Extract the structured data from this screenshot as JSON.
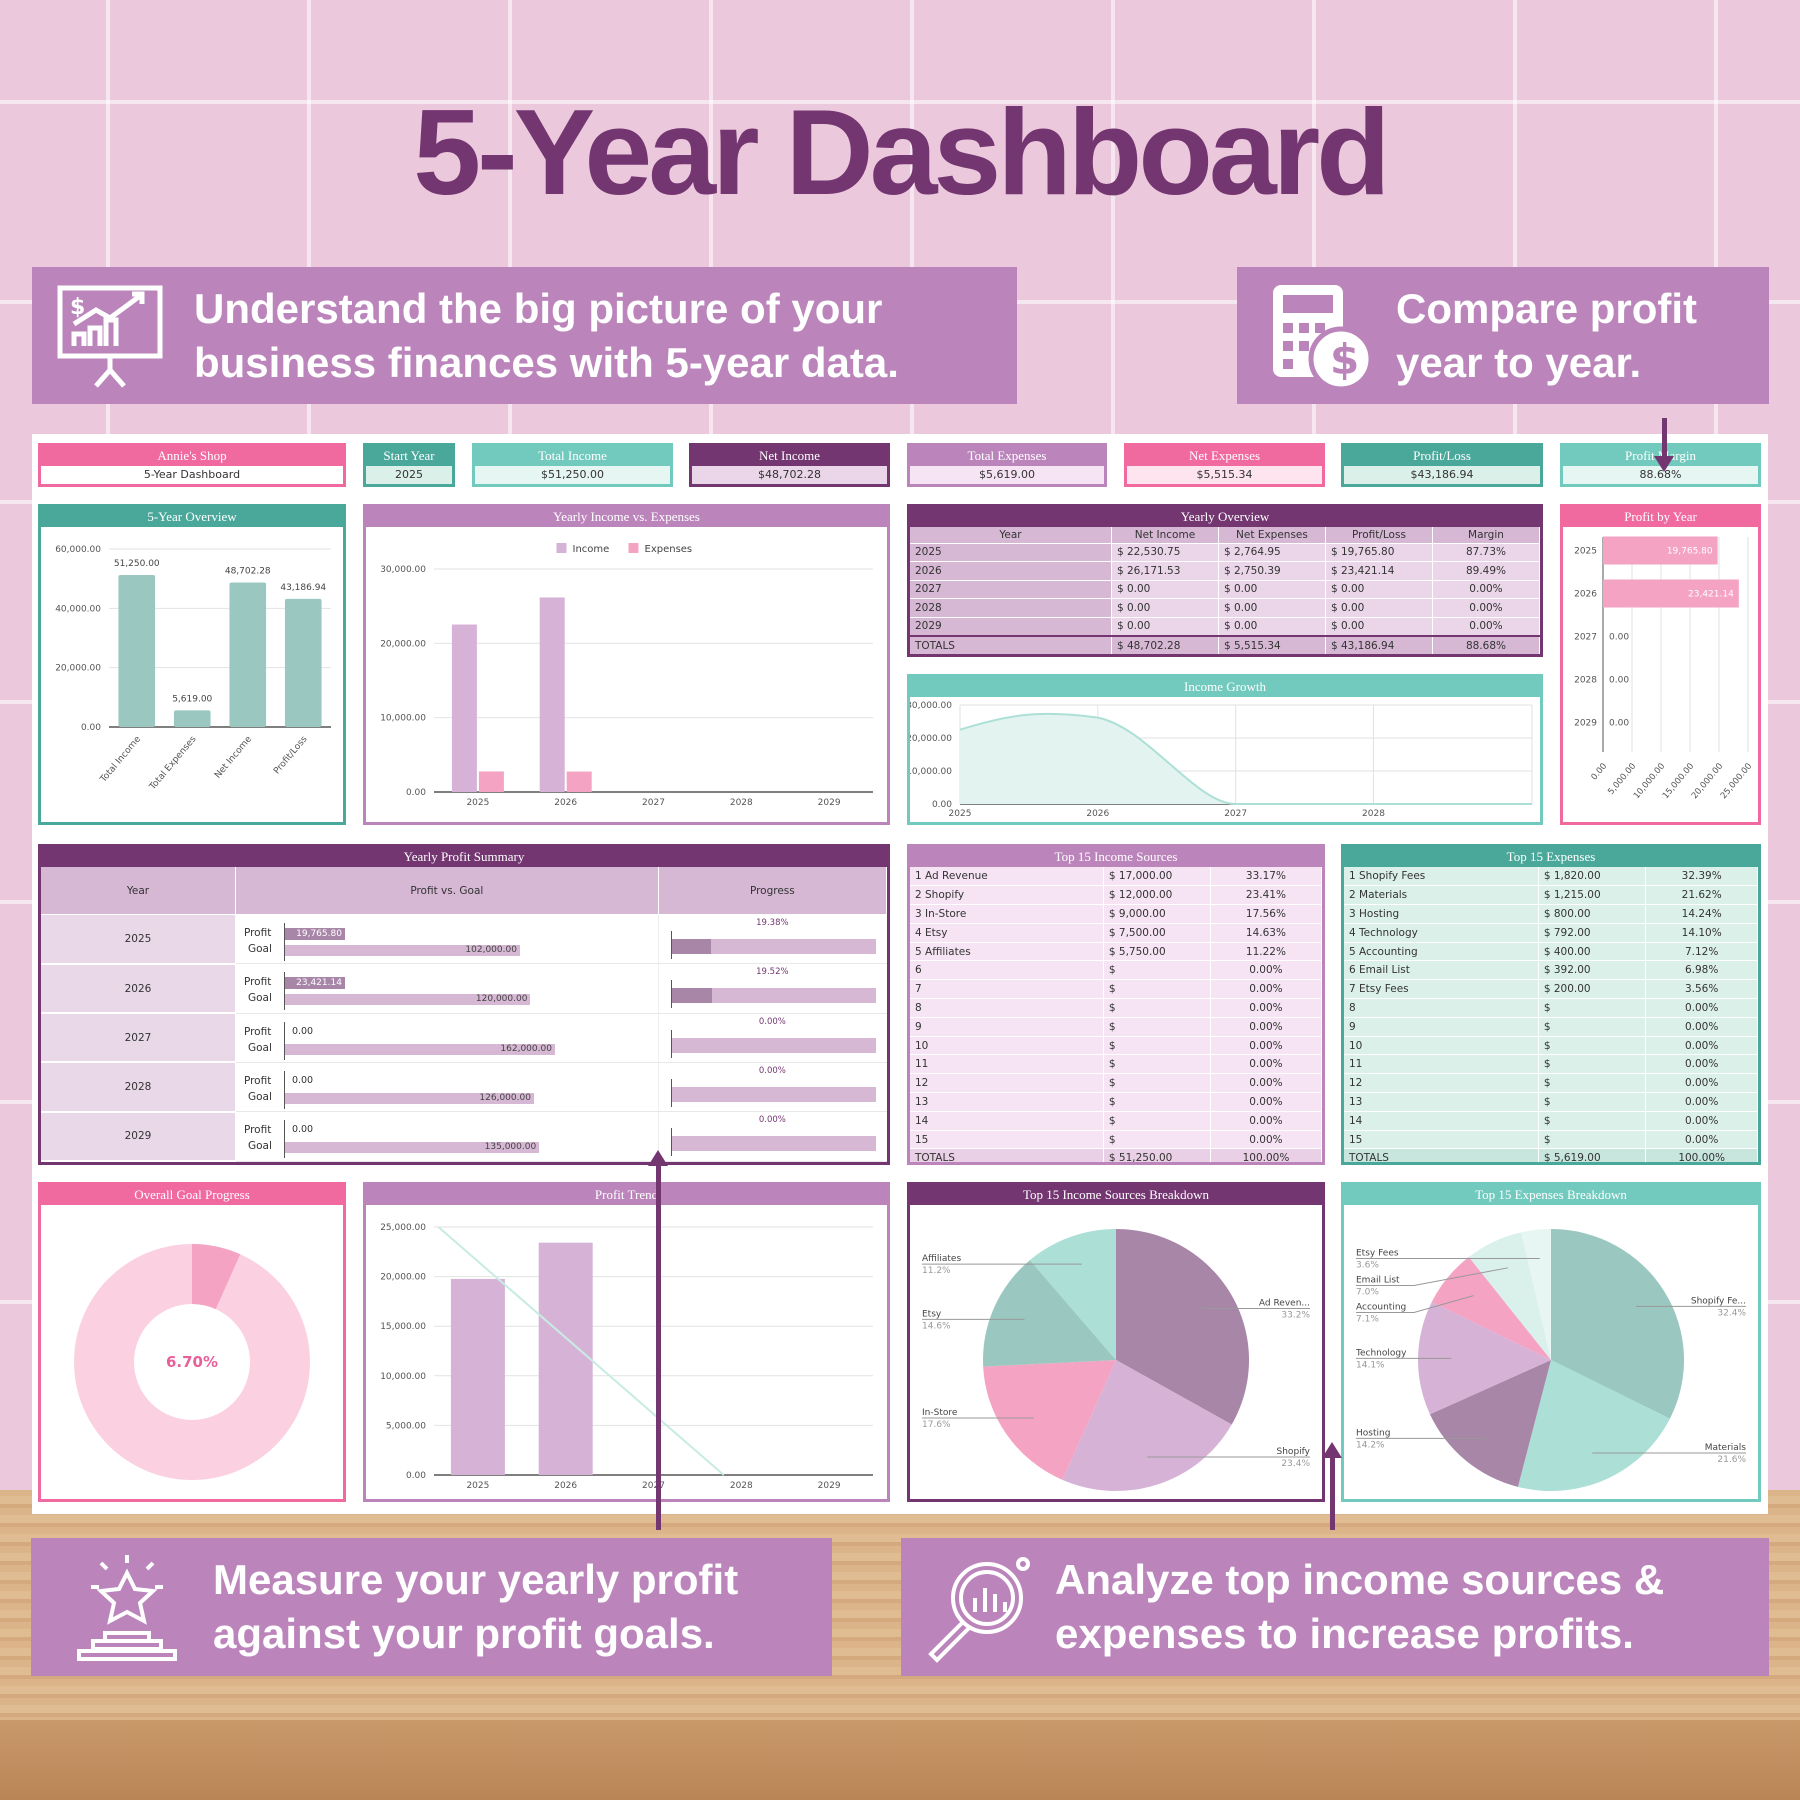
{
  "title": "5-Year Dashboard",
  "banners": {
    "top_left": [
      "Understand the big picture of your",
      "business finances with 5-year data."
    ],
    "top_right": [
      "Compare profit",
      "year to year."
    ],
    "bottom_left": [
      "Measure your yearly profit",
      "against your profit goals."
    ],
    "bottom_right": [
      "Analyze top income sources &",
      "expenses to increase profits."
    ]
  },
  "colors": {
    "dark_purple": "#733671",
    "mauve": "#bb85bb",
    "pink": "#f06aa0",
    "teal": "#4aa89a",
    "light_teal": "#72c9bd",
    "banner": "#bb85bb"
  },
  "cards": {
    "shop_name": "Annie's Shop",
    "shop_sub": "5-Year Dashboard",
    "start_year_label": "Start Year",
    "start_year": "2025",
    "total_income_label": "Total Income",
    "total_income": "$51,250.00",
    "net_income_label": "Net Income",
    "net_income": "$48,702.28",
    "total_expenses_label": "Total Expenses",
    "total_expenses": "$5,619.00",
    "net_expenses_label": "Net Expenses",
    "net_expenses": "$5,515.34",
    "profit_loss_label": "Profit/Loss",
    "profit_loss": "$43,186.94",
    "profit_margin_label": "Profit Margin",
    "profit_margin": "88.68%"
  },
  "panels": {
    "overview": "5-Year Overview",
    "income_vs_expenses": "Yearly Income vs. Expenses",
    "yearly_overview": "Yearly Overview",
    "income_growth": "Income Growth",
    "profit_by_year": "Profit by Year",
    "profit_summary": "Yearly Profit Summary",
    "top_income": "Top 15 Income Sources",
    "top_expenses": "Top 15 Expenses",
    "goal_progress": "Overall Goal Progress",
    "profit_trend": "Profit Trend",
    "income_breakdown": "Top 15 Income Sources Breakdown",
    "expenses_breakdown": "Top 15 Expenses Breakdown"
  },
  "yearly_overview": {
    "headers": [
      "Year",
      "Net Income",
      "Net Expenses",
      "Profit/Loss",
      "Margin"
    ],
    "rows": [
      [
        "2025",
        "22,530.75",
        "2,764.95",
        "19,765.80",
        "87.73%"
      ],
      [
        "2026",
        "26,171.53",
        "2,750.39",
        "23,421.14",
        "89.49%"
      ],
      [
        "2027",
        "0.00",
        "0.00",
        "0.00",
        "0.00%"
      ],
      [
        "2028",
        "0.00",
        "0.00",
        "0.00",
        "0.00%"
      ],
      [
        "2029",
        "0.00",
        "0.00",
        "0.00",
        "0.00%"
      ]
    ],
    "totals": [
      "TOTALS",
      "48,702.28",
      "5,515.34",
      "43,186.94",
      "88.68%"
    ]
  },
  "profit_summary": {
    "headers": [
      "Year",
      "Profit vs. Goal",
      "Progress"
    ],
    "profit_label": "Profit",
    "goal_label": "Goal",
    "rows": [
      {
        "year": "2025",
        "profit": 19765.8,
        "goal": 102000,
        "progress": "19.38%",
        "progress_value": 19.38
      },
      {
        "year": "2026",
        "profit": 23421.14,
        "goal": 120000,
        "progress": "19.52%",
        "progress_value": 19.52
      },
      {
        "year": "2027",
        "profit": 0,
        "goal": 162000,
        "progress": "0.00%",
        "progress_value": 0
      },
      {
        "year": "2028",
        "profit": 0,
        "goal": 126000,
        "progress": "0.00%",
        "progress_value": 0
      },
      {
        "year": "2029",
        "profit": 0,
        "goal": 135000,
        "progress": "0.00%",
        "progress_value": 0
      }
    ]
  },
  "top_income": {
    "rows": [
      [
        "1",
        "Ad Revenue",
        "17,000.00",
        "33.17%"
      ],
      [
        "2",
        "Shopify",
        "12,000.00",
        "23.41%"
      ],
      [
        "3",
        "In-Store",
        "9,000.00",
        "17.56%"
      ],
      [
        "4",
        "Etsy",
        "7,500.00",
        "14.63%"
      ],
      [
        "5",
        "Affiliates",
        "5,750.00",
        "11.22%"
      ],
      [
        "6",
        "",
        "",
        "0.00%"
      ],
      [
        "7",
        "",
        "",
        "0.00%"
      ],
      [
        "8",
        "",
        "",
        "0.00%"
      ],
      [
        "9",
        "",
        "",
        "0.00%"
      ],
      [
        "10",
        "",
        "",
        "0.00%"
      ],
      [
        "11",
        "",
        "",
        "0.00%"
      ],
      [
        "12",
        "",
        "",
        "0.00%"
      ],
      [
        "13",
        "",
        "",
        "0.00%"
      ],
      [
        "14",
        "",
        "",
        "0.00%"
      ],
      [
        "15",
        "",
        "",
        "0.00%"
      ]
    ],
    "totals": [
      "TOTALS",
      "51,250.00",
      "100.00%"
    ]
  },
  "top_expenses": {
    "rows": [
      [
        "1",
        "Shopify Fees",
        "1,820.00",
        "32.39%"
      ],
      [
        "2",
        "Materials",
        "1,215.00",
        "21.62%"
      ],
      [
        "3",
        "Hosting",
        "800.00",
        "14.24%"
      ],
      [
        "4",
        "Technology",
        "792.00",
        "14.10%"
      ],
      [
        "5",
        "Accounting",
        "400.00",
        "7.12%"
      ],
      [
        "6",
        "Email List",
        "392.00",
        "6.98%"
      ],
      [
        "7",
        "Etsy Fees",
        "200.00",
        "3.56%"
      ],
      [
        "8",
        "",
        "",
        "0.00%"
      ],
      [
        "9",
        "",
        "",
        "0.00%"
      ],
      [
        "10",
        "",
        "",
        "0.00%"
      ],
      [
        "11",
        "",
        "",
        "0.00%"
      ],
      [
        "12",
        "",
        "",
        "0.00%"
      ],
      [
        "13",
        "",
        "",
        "0.00%"
      ],
      [
        "14",
        "",
        "",
        "0.00%"
      ],
      [
        "15",
        "",
        "",
        "0.00%"
      ]
    ],
    "totals": [
      "TOTALS",
      "5,619.00",
      "100.00%"
    ]
  },
  "chart_data": [
    {
      "id": "overview",
      "type": "bar",
      "categories": [
        "Total Income",
        "Total Expenses",
        "Net Income",
        "Profit/Loss"
      ],
      "values": [
        51250.0,
        5619.0,
        48702.28,
        43186.94
      ],
      "ylim": [
        0,
        60000
      ],
      "yticks": [
        0,
        20000,
        40000,
        60000
      ],
      "color": "#9ac8c0",
      "data_labels": true,
      "grid": true
    },
    {
      "id": "income_vs_expenses",
      "type": "bar",
      "categories": [
        "2025",
        "2026",
        "2027",
        "2028",
        "2029"
      ],
      "series": [
        {
          "name": "Income",
          "values": [
            22530.75,
            26171.53,
            0,
            0,
            0
          ],
          "color": "#d6b3d6"
        },
        {
          "name": "Expenses",
          "values": [
            2764.95,
            2750.39,
            0,
            0,
            0
          ],
          "color": "#f4a3c3"
        }
      ],
      "ylim": [
        0,
        30000
      ],
      "yticks": [
        0,
        10000,
        20000,
        30000
      ],
      "legend": "top",
      "grid": true
    },
    {
      "id": "income_growth",
      "type": "area",
      "x": [
        "2025",
        "2026",
        "2027",
        "2028",
        "2029"
      ],
      "values": [
        22530.75,
        26171.53,
        0,
        0,
        0
      ],
      "xticks": [
        "2025",
        "2026",
        "2027",
        "2028"
      ],
      "ylim": [
        0,
        30000
      ],
      "yticks": [
        0,
        10000,
        20000,
        30000
      ],
      "color": "#acdfd6",
      "grid": true
    },
    {
      "id": "profit_by_year",
      "type": "bar",
      "orientation": "horizontal",
      "categories": [
        "2025",
        "2026",
        "2027",
        "2028",
        "2029"
      ],
      "values": [
        19765.8,
        23421.14,
        0,
        0,
        0
      ],
      "xlim": [
        0,
        25000
      ],
      "xticks": [
        0,
        5000,
        10000,
        15000,
        20000,
        25000
      ],
      "color": "#f4a3c3",
      "data_labels": true,
      "grid": true
    },
    {
      "id": "goal_progress",
      "type": "pie",
      "donut": true,
      "value": 6.7,
      "center_label": "6.70%",
      "colors": [
        "#f4a3c3",
        "#fbd0e0"
      ]
    },
    {
      "id": "profit_trend",
      "type": "bar",
      "categories": [
        "2025",
        "2026",
        "2027",
        "2028",
        "2029"
      ],
      "values": [
        19765.8,
        23421.14,
        0,
        0,
        0
      ],
      "trendline": true,
      "ylim": [
        0,
        25000
      ],
      "yticks": [
        0,
        5000,
        10000,
        15000,
        20000,
        25000
      ],
      "color": "#d6b3d6",
      "trend_color": "#c8ebe3",
      "grid": true
    },
    {
      "id": "income_breakdown",
      "type": "pie",
      "labels": [
        "Ad Reven...",
        "Shopify",
        "In-Store",
        "Etsy",
        "Affiliates"
      ],
      "values": [
        33.2,
        23.4,
        17.6,
        14.6,
        11.2
      ],
      "pct_labels": [
        "33.2%",
        "23.4%",
        "17.6%",
        "14.6%",
        "11.2%"
      ],
      "colors": [
        "#a886a8",
        "#d6b3d6",
        "#f4a3c3",
        "#9ac8c0",
        "#acdfd6"
      ]
    },
    {
      "id": "expenses_breakdown",
      "type": "pie",
      "labels": [
        "Shopify Fe...",
        "Materials",
        "Hosting",
        "Technology",
        "Accounting",
        "Email List",
        "Etsy Fees"
      ],
      "values": [
        32.4,
        21.6,
        14.2,
        14.1,
        7.1,
        7.0,
        3.6
      ],
      "pct_labels": [
        "32.4%",
        "21.6%",
        "14.2%",
        "14.1%",
        "7.1%",
        "7.0%",
        "3.6%"
      ],
      "colors": [
        "#9ac8c0",
        "#acdfd6",
        "#a886a8",
        "#d6b3d6",
        "#f4a3c3",
        "#daf0eb",
        "#e8f6f3"
      ]
    }
  ]
}
